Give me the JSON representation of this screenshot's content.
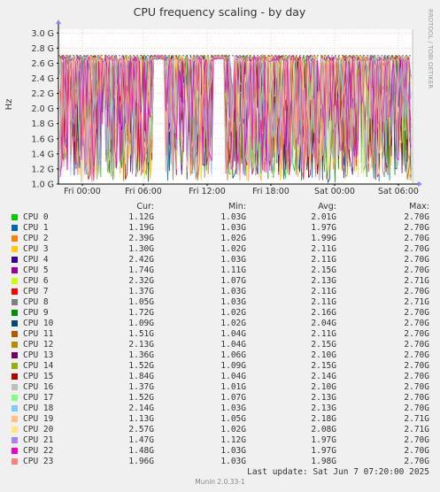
{
  "chart_data": {
    "type": "area",
    "title": "CPU frequency scaling - by day",
    "ylabel": "Hz",
    "side_label": "RRDTOOL / TOBI OETIKER",
    "ylim": [
      1.0,
      3.05
    ],
    "yticks": [
      "1.0 G",
      "1.2 G",
      "1.4 G",
      "1.6 G",
      "1.8 G",
      "2.0 G",
      "2.2 G",
      "2.4 G",
      "2.6 G",
      "2.8 G",
      "3.0 G"
    ],
    "xticks": [
      "Fri 00:00",
      "Fri 06:00",
      "Fri 12:00",
      "Fri 18:00",
      "Sat 00:00",
      "Sat 06:00"
    ],
    "max_line": 2.7,
    "series": [
      {
        "name": "CPU 0",
        "color": "#00cc00",
        "cur": "1.12G",
        "min": "1.03G",
        "avg": "2.01G",
        "max": "2.70G"
      },
      {
        "name": "CPU 1",
        "color": "#0066b3",
        "cur": "1.19G",
        "min": "1.03G",
        "avg": "1.97G",
        "max": "2.70G"
      },
      {
        "name": "CPU 2",
        "color": "#ff8000",
        "cur": "2.39G",
        "min": "1.02G",
        "avg": "1.99G",
        "max": "2.70G"
      },
      {
        "name": "CPU 3",
        "color": "#ffcc00",
        "cur": "1.30G",
        "min": "1.02G",
        "avg": "2.11G",
        "max": "2.70G"
      },
      {
        "name": "CPU 4",
        "color": "#330099",
        "cur": "2.42G",
        "min": "1.03G",
        "avg": "2.11G",
        "max": "2.70G"
      },
      {
        "name": "CPU 5",
        "color": "#990099",
        "cur": "1.74G",
        "min": "1.11G",
        "avg": "2.15G",
        "max": "2.70G"
      },
      {
        "name": "CPU 6",
        "color": "#ccff00",
        "cur": "2.32G",
        "min": "1.07G",
        "avg": "2.13G",
        "max": "2.71G"
      },
      {
        "name": "CPU 7",
        "color": "#ff0000",
        "cur": "1.37G",
        "min": "1.03G",
        "avg": "2.11G",
        "max": "2.70G"
      },
      {
        "name": "CPU 8",
        "color": "#808080",
        "cur": "1.05G",
        "min": "1.03G",
        "avg": "2.11G",
        "max": "2.71G"
      },
      {
        "name": "CPU 9",
        "color": "#008f00",
        "cur": "1.72G",
        "min": "1.02G",
        "avg": "2.16G",
        "max": "2.70G"
      },
      {
        "name": "CPU 10",
        "color": "#00487d",
        "cur": "1.09G",
        "min": "1.02G",
        "avg": "2.04G",
        "max": "2.70G"
      },
      {
        "name": "CPU 11",
        "color": "#b35a00",
        "cur": "1.51G",
        "min": "1.04G",
        "avg": "2.11G",
        "max": "2.70G"
      },
      {
        "name": "CPU 12",
        "color": "#b38f00",
        "cur": "2.13G",
        "min": "1.04G",
        "avg": "2.15G",
        "max": "2.70G"
      },
      {
        "name": "CPU 13",
        "color": "#6b006b",
        "cur": "1.36G",
        "min": "1.06G",
        "avg": "2.10G",
        "max": "2.70G"
      },
      {
        "name": "CPU 14",
        "color": "#8fb300",
        "cur": "1.52G",
        "min": "1.09G",
        "avg": "2.15G",
        "max": "2.70G"
      },
      {
        "name": "CPU 15",
        "color": "#b30000",
        "cur": "1.84G",
        "min": "1.04G",
        "avg": "2.14G",
        "max": "2.70G"
      },
      {
        "name": "CPU 16",
        "color": "#bebebe",
        "cur": "1.37G",
        "min": "1.01G",
        "avg": "2.10G",
        "max": "2.70G"
      },
      {
        "name": "CPU 17",
        "color": "#80ff80",
        "cur": "1.52G",
        "min": "1.07G",
        "avg": "2.13G",
        "max": "2.70G"
      },
      {
        "name": "CPU 18",
        "color": "#80c9ff",
        "cur": "2.14G",
        "min": "1.03G",
        "avg": "2.13G",
        "max": "2.70G"
      },
      {
        "name": "CPU 19",
        "color": "#ffc080",
        "cur": "1.13G",
        "min": "1.05G",
        "avg": "2.18G",
        "max": "2.71G"
      },
      {
        "name": "CPU 20",
        "color": "#ffe680",
        "cur": "2.57G",
        "min": "1.02G",
        "avg": "2.08G",
        "max": "2.71G"
      },
      {
        "name": "CPU 21",
        "color": "#aa80ff",
        "cur": "1.47G",
        "min": "1.12G",
        "avg": "1.97G",
        "max": "2.70G"
      },
      {
        "name": "CPU 22",
        "color": "#ee00cc",
        "cur": "1.48G",
        "min": "1.03G",
        "avg": "1.97G",
        "max": "2.70G"
      },
      {
        "name": "CPU 23",
        "color": "#ff8080",
        "cur": "1.96G",
        "min": "1.03G",
        "avg": "1.98G",
        "max": "2.70G"
      }
    ]
  },
  "legend_headers": {
    "cur": "Cur:",
    "min": "Min:",
    "avg": "Avg:",
    "max": "Max:"
  },
  "last_update": "Last update:  Sat Jun  7 07:20:00 2025",
  "footer": "Munin 2.0.33-1"
}
